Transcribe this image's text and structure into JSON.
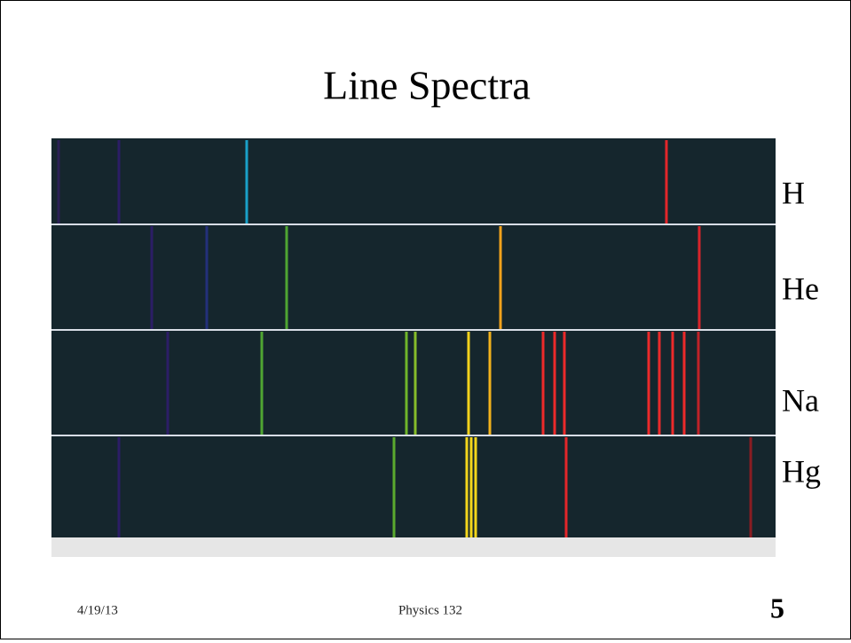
{
  "title": "Line Spectra",
  "spectra": [
    {
      "label": "H"
    },
    {
      "label": "He"
    },
    {
      "label": "Na"
    },
    {
      "label": "Hg"
    }
  ],
  "footer": {
    "date": "4/19/13",
    "course": "Physics 132",
    "page": "5"
  }
}
